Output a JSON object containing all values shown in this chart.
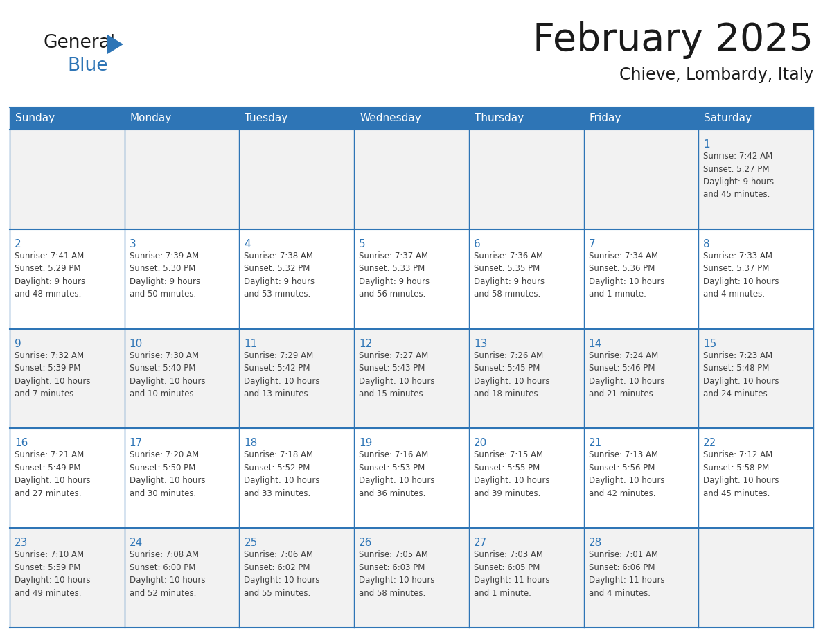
{
  "title": "February 2025",
  "subtitle": "Chieve, Lombardy, Italy",
  "header_bg_color": "#2E75B6",
  "header_text_color": "#FFFFFF",
  "bg_color_odd": "#F2F2F2",
  "bg_color_even": "#FFFFFF",
  "day_headers": [
    "Sunday",
    "Monday",
    "Tuesday",
    "Wednesday",
    "Thursday",
    "Friday",
    "Saturday"
  ],
  "title_color": "#1a1a1a",
  "subtitle_color": "#1a1a1a",
  "day_num_color": "#2E75B6",
  "cell_text_color": "#404040",
  "grid_line_color": "#2E75B6",
  "logo_general_color": "#1a1a1a",
  "logo_blue_color": "#2E75B6",
  "logo_triangle_color": "#2E75B6",
  "weeks": [
    [
      {
        "day": null,
        "info": null
      },
      {
        "day": null,
        "info": null
      },
      {
        "day": null,
        "info": null
      },
      {
        "day": null,
        "info": null
      },
      {
        "day": null,
        "info": null
      },
      {
        "day": null,
        "info": null
      },
      {
        "day": 1,
        "info": "Sunrise: 7:42 AM\nSunset: 5:27 PM\nDaylight: 9 hours\nand 45 minutes."
      }
    ],
    [
      {
        "day": 2,
        "info": "Sunrise: 7:41 AM\nSunset: 5:29 PM\nDaylight: 9 hours\nand 48 minutes."
      },
      {
        "day": 3,
        "info": "Sunrise: 7:39 AM\nSunset: 5:30 PM\nDaylight: 9 hours\nand 50 minutes."
      },
      {
        "day": 4,
        "info": "Sunrise: 7:38 AM\nSunset: 5:32 PM\nDaylight: 9 hours\nand 53 minutes."
      },
      {
        "day": 5,
        "info": "Sunrise: 7:37 AM\nSunset: 5:33 PM\nDaylight: 9 hours\nand 56 minutes."
      },
      {
        "day": 6,
        "info": "Sunrise: 7:36 AM\nSunset: 5:35 PM\nDaylight: 9 hours\nand 58 minutes."
      },
      {
        "day": 7,
        "info": "Sunrise: 7:34 AM\nSunset: 5:36 PM\nDaylight: 10 hours\nand 1 minute."
      },
      {
        "day": 8,
        "info": "Sunrise: 7:33 AM\nSunset: 5:37 PM\nDaylight: 10 hours\nand 4 minutes."
      }
    ],
    [
      {
        "day": 9,
        "info": "Sunrise: 7:32 AM\nSunset: 5:39 PM\nDaylight: 10 hours\nand 7 minutes."
      },
      {
        "day": 10,
        "info": "Sunrise: 7:30 AM\nSunset: 5:40 PM\nDaylight: 10 hours\nand 10 minutes."
      },
      {
        "day": 11,
        "info": "Sunrise: 7:29 AM\nSunset: 5:42 PM\nDaylight: 10 hours\nand 13 minutes."
      },
      {
        "day": 12,
        "info": "Sunrise: 7:27 AM\nSunset: 5:43 PM\nDaylight: 10 hours\nand 15 minutes."
      },
      {
        "day": 13,
        "info": "Sunrise: 7:26 AM\nSunset: 5:45 PM\nDaylight: 10 hours\nand 18 minutes."
      },
      {
        "day": 14,
        "info": "Sunrise: 7:24 AM\nSunset: 5:46 PM\nDaylight: 10 hours\nand 21 minutes."
      },
      {
        "day": 15,
        "info": "Sunrise: 7:23 AM\nSunset: 5:48 PM\nDaylight: 10 hours\nand 24 minutes."
      }
    ],
    [
      {
        "day": 16,
        "info": "Sunrise: 7:21 AM\nSunset: 5:49 PM\nDaylight: 10 hours\nand 27 minutes."
      },
      {
        "day": 17,
        "info": "Sunrise: 7:20 AM\nSunset: 5:50 PM\nDaylight: 10 hours\nand 30 minutes."
      },
      {
        "day": 18,
        "info": "Sunrise: 7:18 AM\nSunset: 5:52 PM\nDaylight: 10 hours\nand 33 minutes."
      },
      {
        "day": 19,
        "info": "Sunrise: 7:16 AM\nSunset: 5:53 PM\nDaylight: 10 hours\nand 36 minutes."
      },
      {
        "day": 20,
        "info": "Sunrise: 7:15 AM\nSunset: 5:55 PM\nDaylight: 10 hours\nand 39 minutes."
      },
      {
        "day": 21,
        "info": "Sunrise: 7:13 AM\nSunset: 5:56 PM\nDaylight: 10 hours\nand 42 minutes."
      },
      {
        "day": 22,
        "info": "Sunrise: 7:12 AM\nSunset: 5:58 PM\nDaylight: 10 hours\nand 45 minutes."
      }
    ],
    [
      {
        "day": 23,
        "info": "Sunrise: 7:10 AM\nSunset: 5:59 PM\nDaylight: 10 hours\nand 49 minutes."
      },
      {
        "day": 24,
        "info": "Sunrise: 7:08 AM\nSunset: 6:00 PM\nDaylight: 10 hours\nand 52 minutes."
      },
      {
        "day": 25,
        "info": "Sunrise: 7:06 AM\nSunset: 6:02 PM\nDaylight: 10 hours\nand 55 minutes."
      },
      {
        "day": 26,
        "info": "Sunrise: 7:05 AM\nSunset: 6:03 PM\nDaylight: 10 hours\nand 58 minutes."
      },
      {
        "day": 27,
        "info": "Sunrise: 7:03 AM\nSunset: 6:05 PM\nDaylight: 11 hours\nand 1 minute."
      },
      {
        "day": 28,
        "info": "Sunrise: 7:01 AM\nSunset: 6:06 PM\nDaylight: 11 hours\nand 4 minutes."
      },
      {
        "day": null,
        "info": null
      }
    ]
  ]
}
